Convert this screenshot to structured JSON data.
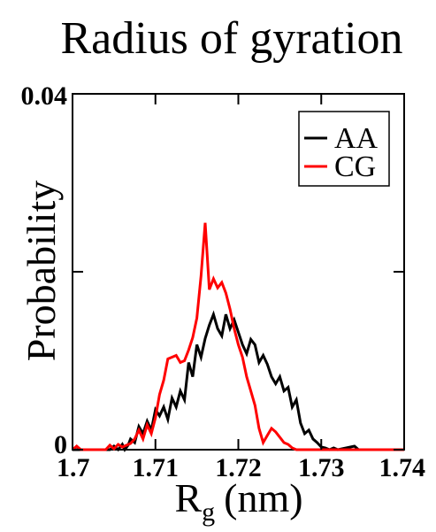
{
  "chart_data": {
    "type": "line",
    "title": "Radius of gyration",
    "xlabel_main": "R",
    "xlabel_sub": "g",
    "xlabel_unit": "(nm)",
    "ylabel": "Probability",
    "xlim": [
      1.7,
      1.74
    ],
    "ylim": [
      0,
      0.04
    ],
    "x_ticks": [
      1.7,
      1.71,
      1.72,
      1.73,
      1.74
    ],
    "x_tick_labels": [
      "1.7",
      "1.71",
      "1.72",
      "1.73",
      "1.74"
    ],
    "y_ticks": [
      0,
      0.02,
      0.04
    ],
    "y_tick_labels": [
      "0",
      "",
      "0.04"
    ],
    "legend_position": "top-right",
    "series": [
      {
        "name": "AA",
        "color": "#000000",
        "points": [
          [
            1.7,
            0
          ],
          [
            1.7025,
            0
          ],
          [
            1.7045,
            0
          ],
          [
            1.705,
            0.0004
          ],
          [
            1.7055,
            0
          ],
          [
            1.706,
            0.0006
          ],
          [
            1.7063,
            0
          ],
          [
            1.7067,
            0.0005
          ],
          [
            1.707,
            0.0012
          ],
          [
            1.7075,
            0.0008
          ],
          [
            1.708,
            0.0026
          ],
          [
            1.7085,
            0.0018
          ],
          [
            1.709,
            0.0032
          ],
          [
            1.7095,
            0.0022
          ],
          [
            1.71,
            0.0045
          ],
          [
            1.7105,
            0.0038
          ],
          [
            1.711,
            0.0048
          ],
          [
            1.7115,
            0.0034
          ],
          [
            1.712,
            0.0058
          ],
          [
            1.7125,
            0.0048
          ],
          [
            1.713,
            0.0066
          ],
          [
            1.7135,
            0.0056
          ],
          [
            1.714,
            0.0098
          ],
          [
            1.7145,
            0.0082
          ],
          [
            1.715,
            0.0118
          ],
          [
            1.7155,
            0.0104
          ],
          [
            1.716,
            0.0125
          ],
          [
            1.7165,
            0.014
          ],
          [
            1.717,
            0.0152
          ],
          [
            1.7175,
            0.0136
          ],
          [
            1.718,
            0.0128
          ],
          [
            1.7185,
            0.0152
          ],
          [
            1.719,
            0.0136
          ],
          [
            1.7195,
            0.0146
          ],
          [
            1.72,
            0.0132
          ],
          [
            1.7205,
            0.0118
          ],
          [
            1.721,
            0.0108
          ],
          [
            1.7215,
            0.0124
          ],
          [
            1.722,
            0.0118
          ],
          [
            1.7225,
            0.0098
          ],
          [
            1.723,
            0.0106
          ],
          [
            1.7235,
            0.0096
          ],
          [
            1.724,
            0.0082
          ],
          [
            1.7245,
            0.0074
          ],
          [
            1.725,
            0.0082
          ],
          [
            1.7255,
            0.0066
          ],
          [
            1.726,
            0.007
          ],
          [
            1.7265,
            0.0048
          ],
          [
            1.727,
            0.0056
          ],
          [
            1.7275,
            0.003
          ],
          [
            1.728,
            0.0018
          ],
          [
            1.7285,
            0.0022
          ],
          [
            1.729,
            0.0012
          ],
          [
            1.7295,
            0.0008
          ],
          [
            1.73,
            0.0003
          ],
          [
            1.7305,
            0.0002
          ],
          [
            1.731,
            0.0
          ],
          [
            1.7315,
            0.0002
          ],
          [
            1.732,
            0
          ],
          [
            1.734,
            0.0004
          ],
          [
            1.7345,
            0
          ],
          [
            1.74,
            0
          ]
        ]
      },
      {
        "name": "CG",
        "color": "#ff0000",
        "points": [
          [
            1.7,
            0
          ],
          [
            1.7005,
            0.0004
          ],
          [
            1.701,
            0
          ],
          [
            1.704,
            0
          ],
          [
            1.7045,
            0.0005
          ],
          [
            1.705,
            0.0001
          ],
          [
            1.7055,
            0.0006
          ],
          [
            1.706,
            0.0003
          ],
          [
            1.707,
            0.0007
          ],
          [
            1.7075,
            0.0012
          ],
          [
            1.708,
            0.0022
          ],
          [
            1.7085,
            0.0012
          ],
          [
            1.709,
            0.0028
          ],
          [
            1.7095,
            0.0018
          ],
          [
            1.71,
            0.0036
          ],
          [
            1.7105,
            0.0062
          ],
          [
            1.711,
            0.0078
          ],
          [
            1.7115,
            0.0102
          ],
          [
            1.712,
            0.0104
          ],
          [
            1.7125,
            0.0106
          ],
          [
            1.713,
            0.0098
          ],
          [
            1.7135,
            0.01
          ],
          [
            1.714,
            0.0112
          ],
          [
            1.7145,
            0.0126
          ],
          [
            1.715,
            0.0148
          ],
          [
            1.7155,
            0.0195
          ],
          [
            1.716,
            0.0255
          ],
          [
            1.7165,
            0.018
          ],
          [
            1.717,
            0.0192
          ],
          [
            1.7175,
            0.0182
          ],
          [
            1.718,
            0.0188
          ],
          [
            1.7185,
            0.0176
          ],
          [
            1.719,
            0.0158
          ],
          [
            1.7195,
            0.0136
          ],
          [
            1.72,
            0.0118
          ],
          [
            1.7205,
            0.0104
          ],
          [
            1.721,
            0.0082
          ],
          [
            1.7215,
            0.0066
          ],
          [
            1.722,
            0.005
          ],
          [
            1.7225,
            0.0024
          ],
          [
            1.723,
            0.0008
          ],
          [
            1.7235,
            0.0016
          ],
          [
            1.724,
            0.0024
          ],
          [
            1.7245,
            0.002
          ],
          [
            1.725,
            0.0014
          ],
          [
            1.7255,
            0.0008
          ],
          [
            1.726,
            0.0006
          ],
          [
            1.7265,
            0.0002
          ],
          [
            1.727,
            0
          ],
          [
            1.74,
            0
          ]
        ]
      }
    ]
  }
}
